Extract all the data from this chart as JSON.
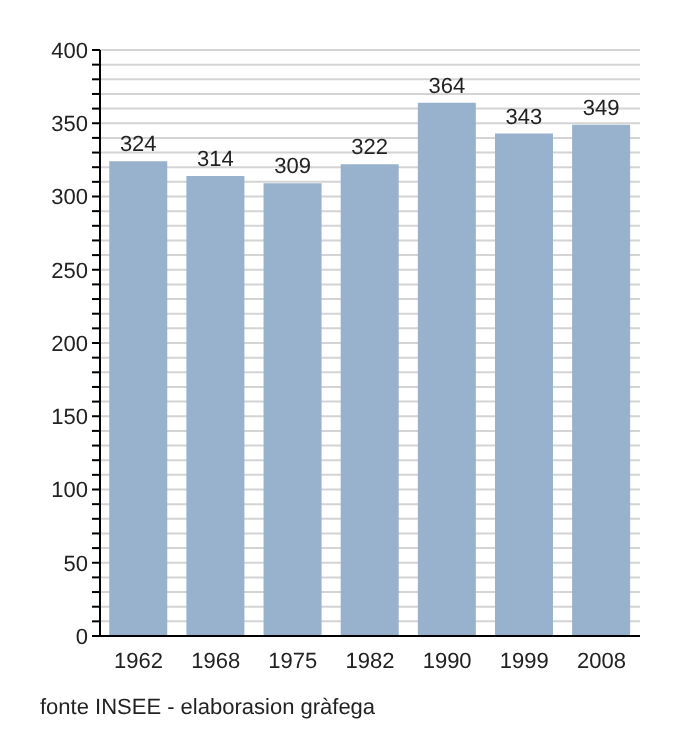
{
  "chart_data": {
    "type": "bar",
    "categories": [
      "1962",
      "1968",
      "1975",
      "1982",
      "1990",
      "1999",
      "2008"
    ],
    "values": [
      324,
      314,
      309,
      322,
      364,
      343,
      349
    ],
    "color": "#98b1cc",
    "data_labels": true,
    "grid": "y",
    "ylim": [
      0,
      400
    ],
    "yticks": [
      0,
      {
        "value": 10,
        "label": null
      },
      {
        "value": 20,
        "label": null
      },
      {
        "value": 30,
        "label": null
      },
      {
        "value": 40,
        "label": null
      },
      50,
      {
        "value": 60,
        "label": null
      },
      {
        "value": 70,
        "label": null
      },
      {
        "value": 80,
        "label": null
      },
      {
        "value": 90,
        "label": null
      },
      100,
      {
        "value": 110,
        "label": null
      },
      {
        "value": 120,
        "label": null
      },
      {
        "value": 130,
        "label": null
      },
      {
        "value": 140,
        "label": null
      },
      150,
      {
        "value": 160,
        "label": null
      },
      {
        "value": 170,
        "label": null
      },
      {
        "value": 180,
        "label": null
      },
      {
        "value": 190,
        "label": null
      },
      200,
      {
        "value": 210,
        "label": null
      },
      {
        "value": 220,
        "label": null
      },
      {
        "value": 230,
        "label": null
      },
      {
        "value": 240,
        "label": null
      },
      250,
      {
        "value": 260,
        "label": null
      },
      {
        "value": 270,
        "label": null
      },
      {
        "value": 280,
        "label": null
      },
      {
        "value": 290,
        "label": null
      },
      300,
      {
        "value": 310,
        "label": null
      },
      {
        "value": 320,
        "label": null
      },
      {
        "value": 330,
        "label": null
      },
      {
        "value": 340,
        "label": null
      },
      350,
      {
        "value": 360,
        "label": null
      },
      {
        "value": 370,
        "label": null
      },
      {
        "value": 380,
        "label": null
      },
      {
        "value": 390,
        "label": null
      },
      400
    ],
    "annotations": [
      "fonte INSEE - elaborasion gràfega"
    ]
  }
}
